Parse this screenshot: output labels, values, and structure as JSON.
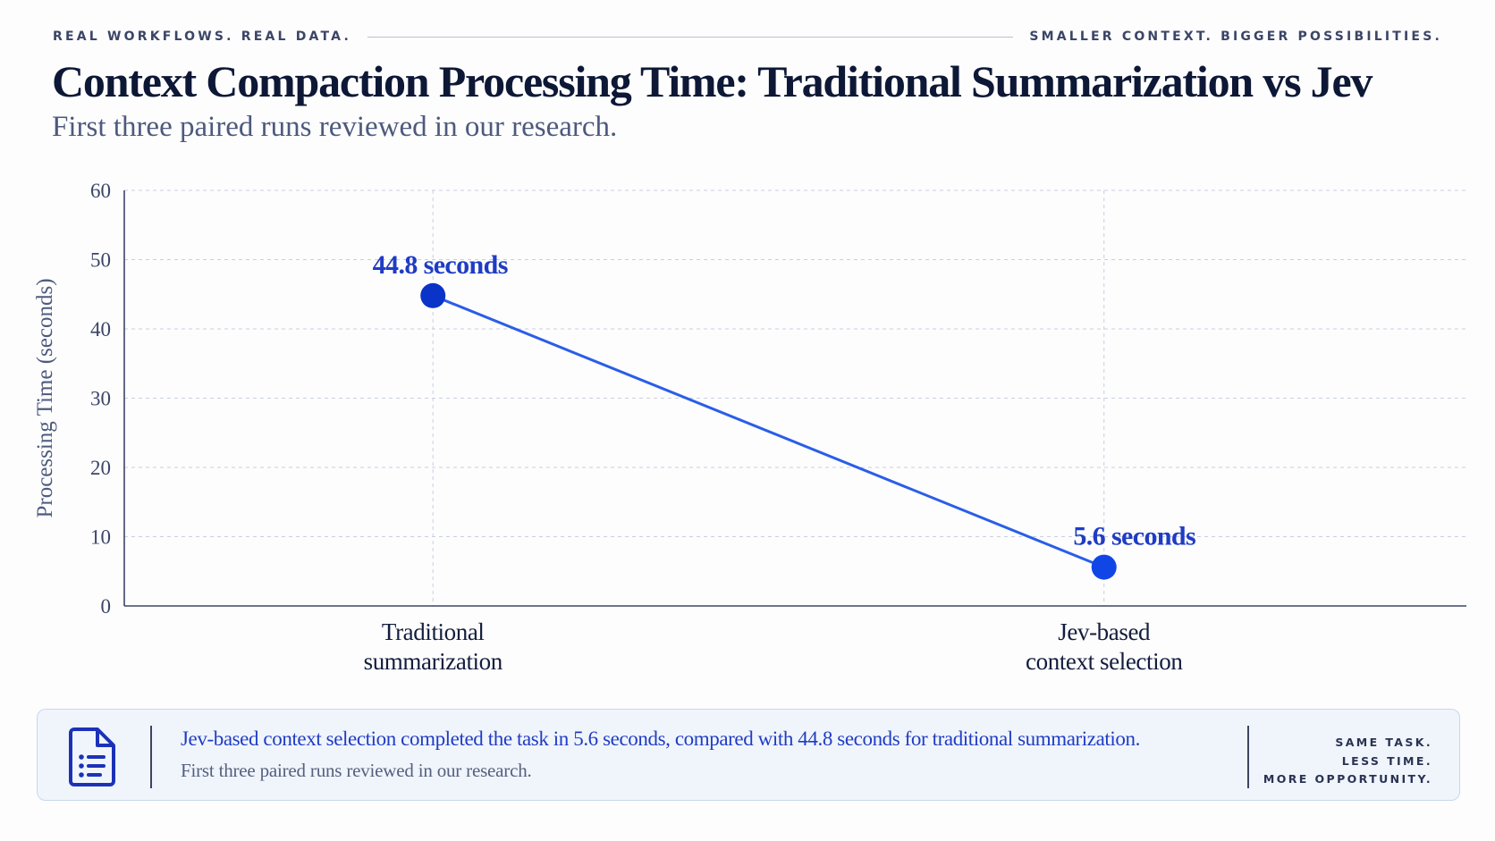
{
  "header": {
    "left_tagline": "REAL WORKFLOWS. REAL DATA.",
    "right_tagline": "SMALLER CONTEXT. BIGGER POSSIBILITIES."
  },
  "chart_data": {
    "type": "line",
    "title": "Context Compaction Processing Time: Traditional Summarization vs Jev",
    "subtitle": "First three paired runs reviewed in our research.",
    "xlabel": "",
    "ylabel": "Processing Time (seconds)",
    "ylim": [
      0,
      60
    ],
    "yticks": [
      0,
      10,
      20,
      30,
      40,
      50,
      60
    ],
    "grid": true,
    "categories": [
      [
        "Traditional",
        "summarization"
      ],
      [
        "Jev-based",
        "context selection"
      ]
    ],
    "series": [
      {
        "values": [
          44.8,
          5.6
        ],
        "data_labels": [
          "44.8 seconds",
          "5.6 seconds"
        ],
        "color": "#2a5ee8",
        "marker_colors": [
          "#0a33c8",
          "#1146e6"
        ]
      }
    ]
  },
  "note": {
    "icon": "document-list-icon",
    "primary": "Jev-based context selection completed the task in 5.6 seconds, compared with 44.8 seconds for traditional summarization.",
    "secondary": "First three paired runs reviewed in our research.",
    "tagline": [
      "SAME TASK.",
      "LESS TIME.",
      "MORE OPPORTUNITY."
    ]
  },
  "colors": {
    "accent": "#1f3cc4",
    "axis": "#3c4664",
    "grid": "#c9cfdd",
    "title": "#0d1836",
    "panel_bg": "#f0f5fc",
    "panel_border": "#c8d8ef"
  }
}
